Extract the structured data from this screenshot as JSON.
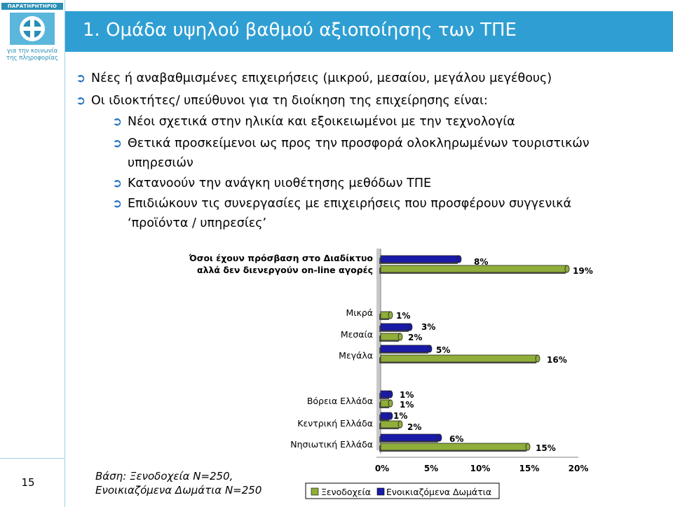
{
  "slide": {
    "title": "1. Ομάδα υψηλού βαθμού αξιοποίησης των ΤΠΕ",
    "page_number": "15",
    "logo": {
      "top_text": "ΠΑΡΑΤΗΡΗΤΗΡΙΟ",
      "line1": "για την κοινωνία",
      "line2": "της πληροφορίας"
    }
  },
  "bullets": [
    {
      "text": "Νέες ή αναβαθμισμένες επιχειρήσεις (μικρού, μεσαίου, μεγάλου μεγέθους)"
    },
    {
      "text": "Οι ιδιοκτήτες/ υπεύθυνοι για τη διοίκηση της επιχείρησης είναι:"
    }
  ],
  "sub_bullets": [
    {
      "lines": [
        "Νέοι σχετικά στην ηλικία και εξοικειωμένοι με την τεχνολογία"
      ]
    },
    {
      "lines": [
        "Θετικά προσκείμενοι ως προς την προσφορά ολοκληρωμένων τουριστικών",
        "υπηρεσιών"
      ]
    },
    {
      "lines": [
        "Κατανοούν την ανάγκη υιοθέτησης μεθόδων ΤΠΕ"
      ]
    },
    {
      "lines": [
        "Επιδιώκουν τις συνεργασίες με επιχειρήσεις που προσφέρουν συγγενικά",
        "‘προϊόντα / υπηρεσίες’"
      ]
    }
  ],
  "footnote": {
    "line1": "Βάση: Ξενοδοχεία Ν=250,",
    "line2": "Ενοικιαζόμενα Δωμάτια Ν=250"
  },
  "colors": {
    "title_bar": "#2f9fd3",
    "series_hotels": "#8fae3a",
    "series_rooms": "#1a1aa8",
    "arrow": "#1f6fbf"
  },
  "chart_data": {
    "type": "bar",
    "orientation": "horizontal",
    "xlim": [
      0,
      20
    ],
    "x_ticks": [
      "0%",
      "5%",
      "10%",
      "15%",
      "20%"
    ],
    "grid": false,
    "legend_position": "bottom",
    "categories": [
      "Όσοι έχουν πρόσβαση στο Διαδίκτυο αλλά δεν διενεργούν on-line αγορές",
      "Μικρά",
      "Μεσαία",
      "Μεγάλα",
      "Βόρεια Ελλάδα",
      "Κεντρική Ελλάδα",
      "Νησιωτική Ελλάδα"
    ],
    "category_lines": [
      [
        "Όσοι έχουν πρόσβαση στο Διαδίκτυο",
        "αλλά δεν διενεργούν on-line αγορές"
      ],
      [
        "Μικρά"
      ],
      [
        "Μεσαία"
      ],
      [
        "Μεγάλα"
      ],
      [
        "Βόρεια Ελλάδα"
      ],
      [
        "Κεντρική Ελλάδα"
      ],
      [
        "Νησιωτική Ελλάδα"
      ]
    ],
    "series": [
      {
        "name": "Ξενοδοχεία",
        "values": [
          19,
          1,
          2,
          16,
          1,
          2,
          15
        ],
        "labels": [
          "19%",
          "1%",
          "2%",
          "16%",
          "1%",
          "2%",
          "15%"
        ]
      },
      {
        "name": "Ενοικιαζόμενα Δωμάτια",
        "values": [
          8,
          null,
          3,
          5,
          1,
          1,
          6
        ],
        "labels": [
          "8%",
          "",
          "3%",
          "5%",
          "1%",
          "1%",
          "6%"
        ]
      }
    ]
  }
}
